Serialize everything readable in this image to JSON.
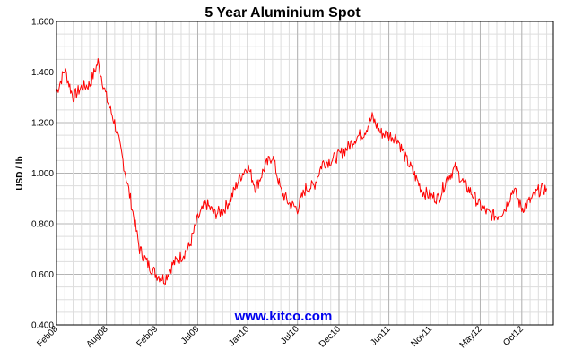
{
  "chart_data": {
    "type": "line",
    "title": "5 Year Aluminium Spot",
    "xlabel": "",
    "ylabel": "USD / lb",
    "ylim": [
      0.4,
      1.6
    ],
    "yticks": [
      "0.400",
      "0.600",
      "0.800",
      "1.000",
      "1.200",
      "1.400",
      "1.600"
    ],
    "xticks": [
      "Feb08",
      "Aug08",
      "Feb09",
      "Jul09",
      "Jan10",
      "Jul10",
      "Dec10",
      "Jun11",
      "Nov11",
      "May12",
      "Oct12"
    ],
    "grid": true,
    "series": [
      {
        "name": "",
        "color": "#ff0000",
        "x": [
          "2008-02",
          "2008-03",
          "2008-04",
          "2008-05",
          "2008-06",
          "2008-07",
          "2008-08",
          "2008-09",
          "2008-10",
          "2008-11",
          "2008-12",
          "2009-01",
          "2009-02",
          "2009-03",
          "2009-04",
          "2009-05",
          "2009-06",
          "2009-07",
          "2009-08",
          "2009-09",
          "2009-10",
          "2009-11",
          "2009-12",
          "2010-01",
          "2010-02",
          "2010-03",
          "2010-04",
          "2010-05",
          "2010-06",
          "2010-07",
          "2010-08",
          "2010-09",
          "2010-10",
          "2010-11",
          "2010-12",
          "2011-01",
          "2011-02",
          "2011-03",
          "2011-04",
          "2011-05",
          "2011-06",
          "2011-07",
          "2011-08",
          "2011-09",
          "2011-10",
          "2011-11",
          "2011-12",
          "2012-01",
          "2012-02",
          "2012-03",
          "2012-04",
          "2012-05",
          "2012-06",
          "2012-07",
          "2012-08",
          "2012-09",
          "2012-10",
          "2012-11",
          "2012-12",
          "2013-01"
        ],
        "values": [
          1.32,
          1.41,
          1.3,
          1.34,
          1.35,
          1.44,
          1.3,
          1.2,
          1.05,
          0.88,
          0.7,
          0.64,
          0.6,
          0.58,
          0.64,
          0.67,
          0.71,
          0.82,
          0.88,
          0.84,
          0.85,
          0.9,
          0.98,
          1.03,
          0.94,
          1.02,
          1.07,
          0.93,
          0.88,
          0.86,
          0.94,
          0.95,
          1.04,
          1.05,
          1.07,
          1.1,
          1.14,
          1.16,
          1.22,
          1.16,
          1.15,
          1.14,
          1.06,
          1.0,
          0.93,
          0.91,
          0.9,
          0.98,
          1.02,
          0.96,
          0.92,
          0.87,
          0.84,
          0.83,
          0.86,
          0.94,
          0.86,
          0.89,
          0.93,
          0.94
        ]
      }
    ],
    "watermark": "www.kitco.com"
  }
}
